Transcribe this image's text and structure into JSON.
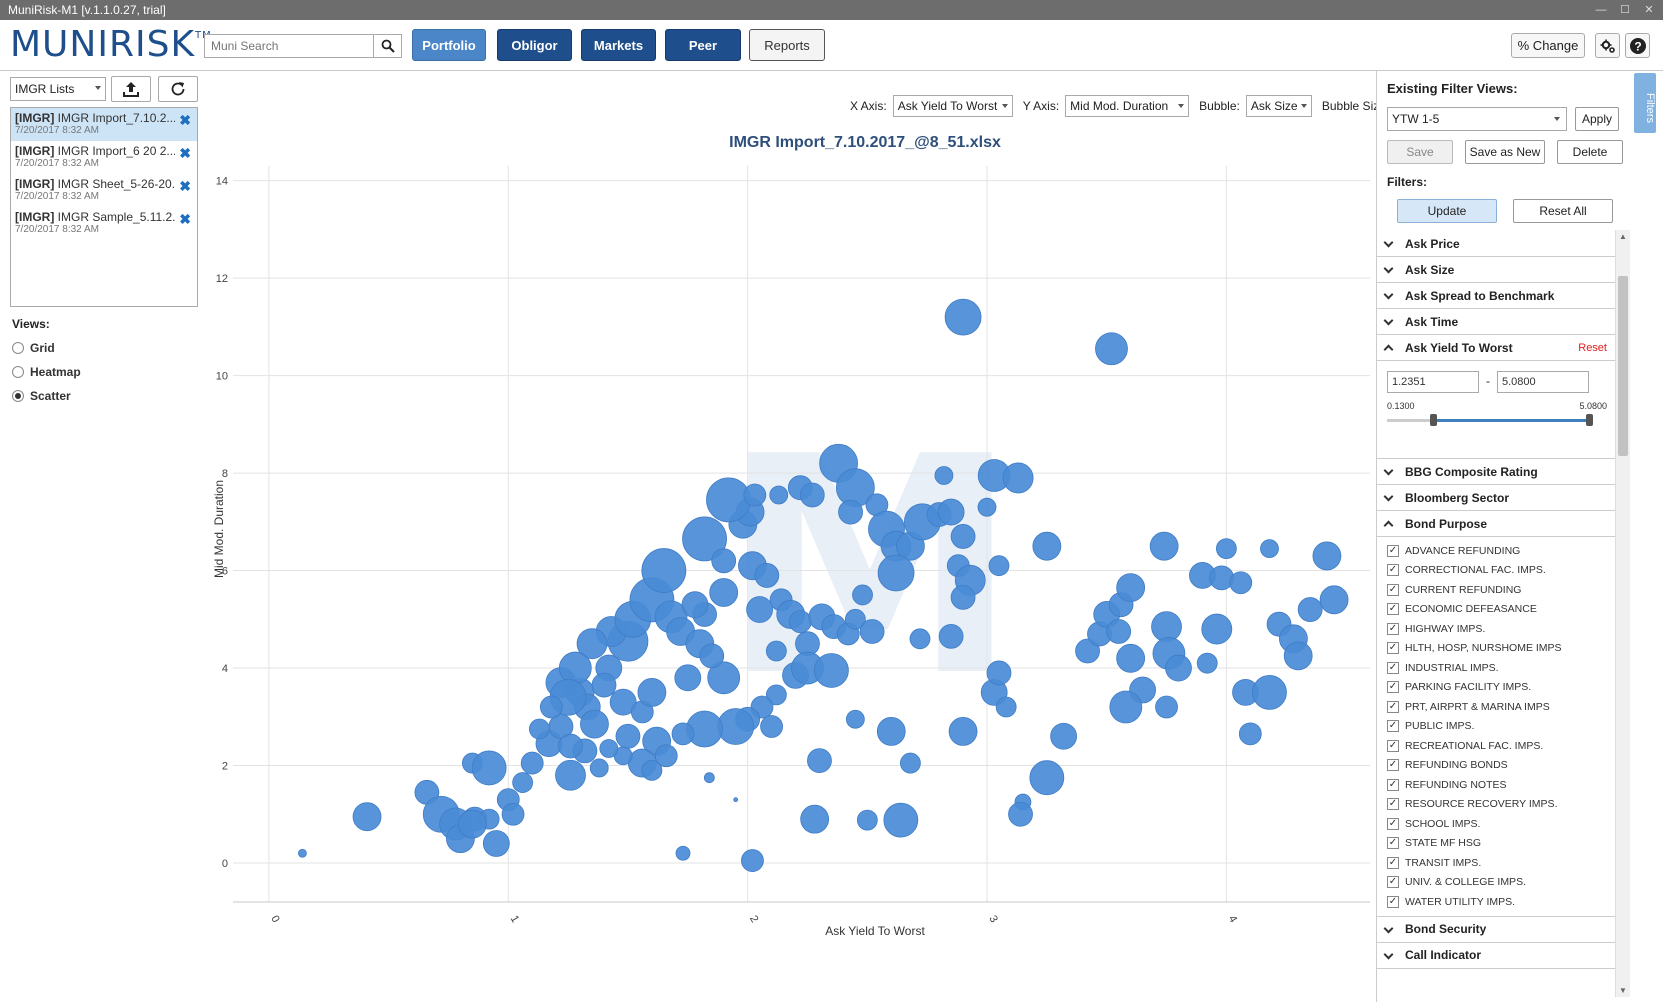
{
  "window": {
    "title": "MuniRisk-M1 [v.1.1.0.27, trial]"
  },
  "header": {
    "logo": "MUNIRISK",
    "logo_tm": "TM",
    "search_placeholder": "Muni Search",
    "nav": [
      "Portfolio",
      "Obligor",
      "Markets",
      "Peer",
      "Reports"
    ],
    "pct_change": "% Change"
  },
  "left": {
    "list_select": "IMGR Lists",
    "lists": [
      {
        "tag": "[IMGR]",
        "name": "IMGR Import_7.10.2...",
        "date": "7/20/2017 8:32 AM"
      },
      {
        "tag": "[IMGR]",
        "name": "IMGR Import_6 20 2...",
        "date": "7/20/2017 8:32 AM"
      },
      {
        "tag": "[IMGR]",
        "name": "IMGR Sheet_5-26-20...",
        "date": "7/20/2017 8:32 AM"
      },
      {
        "tag": "[IMGR]",
        "name": "IMGR Sample_5.11.2...",
        "date": "7/20/2017 8:32 AM"
      }
    ],
    "views_label": "Views:",
    "views": [
      "Grid",
      "Heatmap",
      "Scatter"
    ],
    "selected_view": "Scatter"
  },
  "controls": {
    "x_axis_label": "X Axis:",
    "x_axis_value": "Ask Yield To Worst",
    "y_axis_label": "Y Axis:",
    "y_axis_value": "Mid Mod. Duration",
    "bubble_label": "Bubble:",
    "bubble_value": "Ask Size",
    "bubble_size_label": "Bubble Size"
  },
  "chart_data": {
    "type": "scatter",
    "title": "IMGR Import_7.10.2017_@8_51.xlsx",
    "xlabel": "Ask Yield To Worst",
    "ylabel": "Mid Mod. Duration",
    "xlim": [
      -0.15,
      4.6
    ],
    "ylim": [
      -0.8,
      14.3
    ],
    "x_ticks": [
      0,
      1,
      2,
      3,
      4
    ],
    "y_ticks": [
      0,
      2,
      4,
      6,
      8,
      10,
      12,
      14
    ],
    "grid": true,
    "color": "#4a8bd6",
    "watermark": "M",
    "points": [
      {
        "x": 0.14,
        "y": 0.2,
        "s": 4
      },
      {
        "x": 0.41,
        "y": 0.95,
        "s": 14
      },
      {
        "x": 0.66,
        "y": 1.45,
        "s": 12
      },
      {
        "x": 0.72,
        "y": 1.0,
        "s": 18
      },
      {
        "x": 0.78,
        "y": 0.8,
        "s": 16
      },
      {
        "x": 0.8,
        "y": 0.5,
        "s": 14
      },
      {
        "x": 0.86,
        "y": 0.9,
        "s": 12
      },
      {
        "x": 0.92,
        "y": 0.9,
        "s": 10
      },
      {
        "x": 0.95,
        "y": 0.4,
        "s": 13
      },
      {
        "x": 0.85,
        "y": 0.8,
        "s": 14
      },
      {
        "x": 0.85,
        "y": 2.05,
        "s": 10
      },
      {
        "x": 0.92,
        "y": 1.95,
        "s": 17
      },
      {
        "x": 1.0,
        "y": 1.3,
        "s": 11
      },
      {
        "x": 1.02,
        "y": 1.0,
        "s": 11
      },
      {
        "x": 1.1,
        "y": 2.05,
        "s": 11
      },
      {
        "x": 1.17,
        "y": 2.45,
        "s": 13
      },
      {
        "x": 1.26,
        "y": 1.8,
        "s": 15
      },
      {
        "x": 1.22,
        "y": 2.8,
        "s": 12
      },
      {
        "x": 1.32,
        "y": 2.3,
        "s": 12
      },
      {
        "x": 1.38,
        "y": 1.95,
        "s": 9
      },
      {
        "x": 1.13,
        "y": 2.75,
        "s": 10
      },
      {
        "x": 1.3,
        "y": 3.5,
        "s": 14
      },
      {
        "x": 1.22,
        "y": 3.7,
        "s": 15
      },
      {
        "x": 1.33,
        "y": 3.2,
        "s": 13
      },
      {
        "x": 1.42,
        "y": 4.0,
        "s": 13
      },
      {
        "x": 1.48,
        "y": 3.3,
        "s": 13
      },
      {
        "x": 1.56,
        "y": 3.1,
        "s": 11
      },
      {
        "x": 1.6,
        "y": 3.5,
        "s": 14
      },
      {
        "x": 1.5,
        "y": 4.55,
        "s": 20
      },
      {
        "x": 1.43,
        "y": 4.75,
        "s": 15
      },
      {
        "x": 1.52,
        "y": 5.0,
        "s": 18
      },
      {
        "x": 1.6,
        "y": 5.4,
        "s": 22
      },
      {
        "x": 1.68,
        "y": 5.05,
        "s": 16
      },
      {
        "x": 1.72,
        "y": 4.75,
        "s": 14
      },
      {
        "x": 1.82,
        "y": 5.1,
        "s": 12
      },
      {
        "x": 1.65,
        "y": 6.0,
        "s": 22
      },
      {
        "x": 1.82,
        "y": 6.65,
        "s": 22
      },
      {
        "x": 1.9,
        "y": 6.2,
        "s": 12
      },
      {
        "x": 1.98,
        "y": 6.95,
        "s": 14
      },
      {
        "x": 2.01,
        "y": 7.2,
        "s": 14
      },
      {
        "x": 1.92,
        "y": 7.45,
        "s": 22
      },
      {
        "x": 2.03,
        "y": 7.55,
        "s": 11
      },
      {
        "x": 2.13,
        "y": 7.55,
        "s": 9
      },
      {
        "x": 2.22,
        "y": 7.7,
        "s": 12
      },
      {
        "x": 2.27,
        "y": 7.55,
        "s": 12
      },
      {
        "x": 2.38,
        "y": 8.2,
        "s": 19
      },
      {
        "x": 2.45,
        "y": 7.7,
        "s": 19
      },
      {
        "x": 2.43,
        "y": 7.2,
        "s": 12
      },
      {
        "x": 2.54,
        "y": 7.35,
        "s": 11
      },
      {
        "x": 2.58,
        "y": 6.85,
        "s": 18
      },
      {
        "x": 2.62,
        "y": 6.5,
        "s": 15
      },
      {
        "x": 2.68,
        "y": 6.5,
        "s": 14
      },
      {
        "x": 2.73,
        "y": 7.0,
        "s": 18
      },
      {
        "x": 2.8,
        "y": 7.15,
        "s": 12
      },
      {
        "x": 2.85,
        "y": 7.2,
        "s": 13
      },
      {
        "x": 2.9,
        "y": 6.7,
        "s": 12
      },
      {
        "x": 2.82,
        "y": 7.95,
        "s": 9
      },
      {
        "x": 3.03,
        "y": 7.95,
        "s": 16
      },
      {
        "x": 3.13,
        "y": 7.9,
        "s": 15
      },
      {
        "x": 3.0,
        "y": 7.3,
        "s": 9
      },
      {
        "x": 2.88,
        "y": 6.1,
        "s": 11
      },
      {
        "x": 2.93,
        "y": 5.8,
        "s": 15
      },
      {
        "x": 2.9,
        "y": 5.45,
        "s": 12
      },
      {
        "x": 3.05,
        "y": 6.1,
        "s": 10
      },
      {
        "x": 2.9,
        "y": 11.2,
        "s": 18
      },
      {
        "x": 3.52,
        "y": 10.55,
        "s": 16
      },
      {
        "x": 2.02,
        "y": 6.1,
        "s": 14
      },
      {
        "x": 2.08,
        "y": 5.9,
        "s": 12
      },
      {
        "x": 2.14,
        "y": 5.4,
        "s": 11
      },
      {
        "x": 2.18,
        "y": 5.1,
        "s": 14
      },
      {
        "x": 2.05,
        "y": 5.2,
        "s": 13
      },
      {
        "x": 2.22,
        "y": 4.95,
        "s": 11
      },
      {
        "x": 2.25,
        "y": 4.5,
        "s": 12
      },
      {
        "x": 2.12,
        "y": 4.35,
        "s": 10
      },
      {
        "x": 2.31,
        "y": 5.05,
        "s": 13
      },
      {
        "x": 2.36,
        "y": 4.85,
        "s": 12
      },
      {
        "x": 2.42,
        "y": 4.7,
        "s": 11
      },
      {
        "x": 2.48,
        "y": 5.5,
        "s": 10
      },
      {
        "x": 2.62,
        "y": 5.95,
        "s": 18
      },
      {
        "x": 2.72,
        "y": 4.6,
        "s": 10
      },
      {
        "x": 2.85,
        "y": 4.65,
        "s": 12
      },
      {
        "x": 2.2,
        "y": 3.85,
        "s": 13
      },
      {
        "x": 2.25,
        "y": 4.0,
        "s": 16
      },
      {
        "x": 2.35,
        "y": 3.95,
        "s": 17
      },
      {
        "x": 2.12,
        "y": 3.45,
        "s": 10
      },
      {
        "x": 2.06,
        "y": 3.2,
        "s": 11
      },
      {
        "x": 2.0,
        "y": 2.95,
        "s": 12
      },
      {
        "x": 1.95,
        "y": 2.8,
        "s": 18
      },
      {
        "x": 2.1,
        "y": 2.8,
        "s": 11
      },
      {
        "x": 1.82,
        "y": 2.75,
        "s": 18
      },
      {
        "x": 1.73,
        "y": 2.65,
        "s": 11
      },
      {
        "x": 1.62,
        "y": 2.5,
        "s": 14
      },
      {
        "x": 1.66,
        "y": 2.2,
        "s": 11
      },
      {
        "x": 1.56,
        "y": 2.05,
        "s": 14
      },
      {
        "x": 1.6,
        "y": 1.9,
        "s": 10
      },
      {
        "x": 1.48,
        "y": 2.2,
        "s": 9
      },
      {
        "x": 1.42,
        "y": 2.35,
        "s": 9
      },
      {
        "x": 1.5,
        "y": 2.6,
        "s": 12
      },
      {
        "x": 2.02,
        "y": 0.05,
        "s": 11
      },
      {
        "x": 2.28,
        "y": 0.9,
        "s": 14
      },
      {
        "x": 2.5,
        "y": 0.88,
        "s": 10
      },
      {
        "x": 2.64,
        "y": 0.88,
        "s": 17
      },
      {
        "x": 2.3,
        "y": 2.1,
        "s": 12
      },
      {
        "x": 2.45,
        "y": 2.95,
        "s": 9
      },
      {
        "x": 2.6,
        "y": 2.7,
        "s": 14
      },
      {
        "x": 2.68,
        "y": 2.05,
        "s": 10
      },
      {
        "x": 2.9,
        "y": 2.7,
        "s": 14
      },
      {
        "x": 3.03,
        "y": 3.5,
        "s": 13
      },
      {
        "x": 3.05,
        "y": 3.9,
        "s": 12
      },
      {
        "x": 3.08,
        "y": 3.2,
        "s": 10
      },
      {
        "x": 3.15,
        "y": 1.25,
        "s": 8
      },
      {
        "x": 3.14,
        "y": 1.0,
        "s": 12
      },
      {
        "x": 3.25,
        "y": 1.75,
        "s": 17
      },
      {
        "x": 3.32,
        "y": 2.6,
        "s": 13
      },
      {
        "x": 3.25,
        "y": 6.5,
        "s": 14
      },
      {
        "x": 3.42,
        "y": 4.35,
        "s": 12
      },
      {
        "x": 3.47,
        "y": 4.7,
        "s": 12
      },
      {
        "x": 3.5,
        "y": 5.1,
        "s": 13
      },
      {
        "x": 3.56,
        "y": 5.3,
        "s": 12
      },
      {
        "x": 3.6,
        "y": 5.65,
        "s": 14
      },
      {
        "x": 3.55,
        "y": 4.75,
        "s": 12
      },
      {
        "x": 3.6,
        "y": 4.2,
        "s": 14
      },
      {
        "x": 3.65,
        "y": 3.55,
        "s": 13
      },
      {
        "x": 3.58,
        "y": 3.2,
        "s": 16
      },
      {
        "x": 3.75,
        "y": 4.85,
        "s": 15
      },
      {
        "x": 3.76,
        "y": 4.3,
        "s": 16
      },
      {
        "x": 3.8,
        "y": 4.0,
        "s": 13
      },
      {
        "x": 3.75,
        "y": 3.2,
        "s": 11
      },
      {
        "x": 3.9,
        "y": 5.9,
        "s": 13
      },
      {
        "x": 3.98,
        "y": 5.85,
        "s": 12
      },
      {
        "x": 3.96,
        "y": 4.8,
        "s": 15
      },
      {
        "x": 3.92,
        "y": 4.1,
        "s": 10
      },
      {
        "x": 3.74,
        "y": 6.5,
        "s": 14
      },
      {
        "x": 4.0,
        "y": 6.45,
        "s": 10
      },
      {
        "x": 4.06,
        "y": 5.75,
        "s": 11
      },
      {
        "x": 4.08,
        "y": 3.5,
        "s": 13
      },
      {
        "x": 4.18,
        "y": 3.5,
        "s": 17
      },
      {
        "x": 4.1,
        "y": 2.65,
        "s": 11
      },
      {
        "x": 4.18,
        "y": 6.45,
        "s": 9
      },
      {
        "x": 4.22,
        "y": 4.9,
        "s": 12
      },
      {
        "x": 4.28,
        "y": 4.6,
        "s": 14
      },
      {
        "x": 4.3,
        "y": 4.25,
        "s": 14
      },
      {
        "x": 4.35,
        "y": 5.2,
        "s": 12
      },
      {
        "x": 4.42,
        "y": 6.3,
        "s": 14
      },
      {
        "x": 4.45,
        "y": 5.4,
        "s": 14
      },
      {
        "x": 1.73,
        "y": 0.2,
        "s": 7
      },
      {
        "x": 1.84,
        "y": 1.75,
        "s": 5
      },
      {
        "x": 1.95,
        "y": 1.3,
        "s": 2
      },
      {
        "x": 1.8,
        "y": 4.5,
        "s": 14
      },
      {
        "x": 1.75,
        "y": 3.8,
        "s": 13
      },
      {
        "x": 1.9,
        "y": 3.8,
        "s": 16
      },
      {
        "x": 1.85,
        "y": 4.25,
        "s": 12
      },
      {
        "x": 1.78,
        "y": 5.3,
        "s": 13
      },
      {
        "x": 1.9,
        "y": 5.55,
        "s": 14
      },
      {
        "x": 2.45,
        "y": 5.0,
        "s": 10
      },
      {
        "x": 2.52,
        "y": 4.75,
        "s": 12
      },
      {
        "x": 1.35,
        "y": 4.5,
        "s": 15
      },
      {
        "x": 1.28,
        "y": 4.0,
        "s": 16
      },
      {
        "x": 1.25,
        "y": 3.4,
        "s": 18
      },
      {
        "x": 1.4,
        "y": 3.65,
        "s": 12
      },
      {
        "x": 1.18,
        "y": 3.2,
        "s": 11
      },
      {
        "x": 1.36,
        "y": 2.85,
        "s": 14
      },
      {
        "x": 1.26,
        "y": 2.4,
        "s": 12
      },
      {
        "x": 1.06,
        "y": 1.65,
        "s": 10
      }
    ]
  },
  "right": {
    "existing_views_label": "Existing Filter Views:",
    "view_select": "YTW 1-5",
    "apply": "Apply",
    "save": "Save",
    "save_as_new": "Save as New",
    "delete": "Delete",
    "filters_label": "Filters:",
    "update": "Update",
    "reset_all": "Reset All",
    "tab_label": "Filters",
    "accordion_top": [
      "Ask Price",
      "Ask Size",
      "Ask Spread to Benchmark",
      "Ask Time"
    ],
    "range_filter": {
      "label": "Ask Yield To Worst",
      "reset": "Reset",
      "from": "1.2351",
      "to": "5.0800",
      "min": "0.1300",
      "max": "5.0800",
      "from_frac": 0.2245,
      "to_frac": 1.0
    },
    "accordion_mid": [
      "BBG Composite Rating",
      "Bloomberg Sector"
    ],
    "purpose": {
      "label": "Bond Purpose",
      "items": [
        "ADVANCE REFUNDING",
        "CORRECTIONAL FAC. IMPS.",
        "CURRENT REFUNDING",
        "ECONOMIC DEFEASANCE",
        "HIGHWAY IMPS.",
        "HLTH, HOSP, NURSHOME IMPS",
        "INDUSTRIAL IMPS.",
        "PARKING FACILITY IMPS.",
        "PRT, AIRPRT & MARINA IMPS",
        "PUBLIC IMPS.",
        "RECREATIONAL FAC. IMPS.",
        "REFUNDING BONDS",
        "REFUNDING NOTES",
        "RESOURCE RECOVERY IMPS.",
        "SCHOOL IMPS.",
        "STATE MF HSG",
        "TRANSIT IMPS.",
        "UNIV. & COLLEGE IMPS.",
        "WATER UTILITY IMPS."
      ]
    },
    "accordion_bottom": [
      "Bond Security",
      "Call Indicator"
    ]
  }
}
